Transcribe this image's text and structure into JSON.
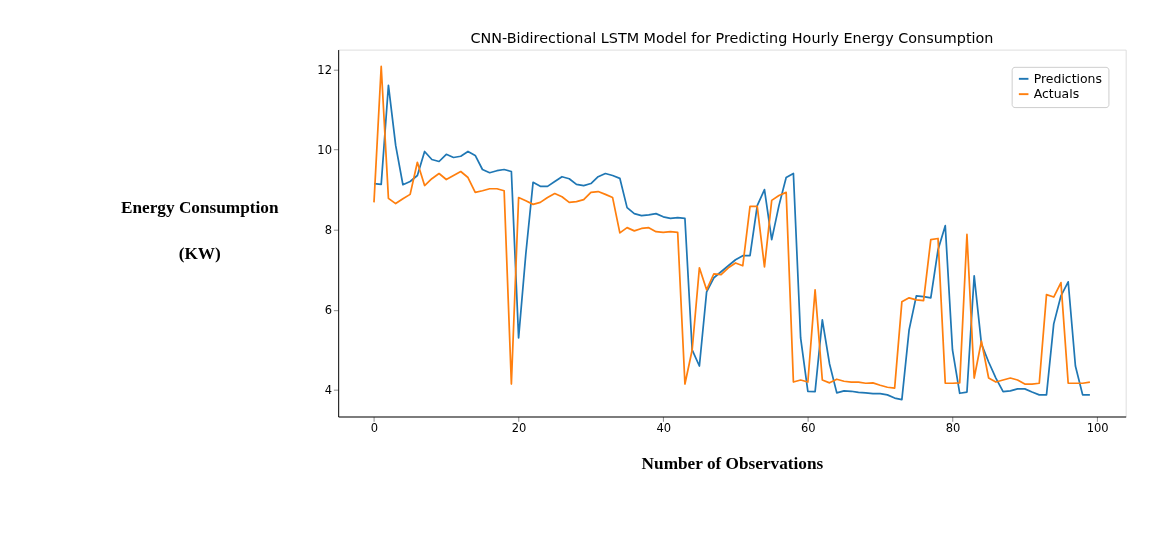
{
  "chart_data": {
    "type": "line",
    "title": "CNN-Bidirectional LSTM Model for Predicting Hourly Energy Consumption",
    "xlabel": "Number of Observations",
    "ylabel": "Energy Consumption\n(KW)",
    "x": [
      0,
      1,
      2,
      3,
      4,
      5,
      6,
      7,
      8,
      9,
      10,
      11,
      12,
      13,
      14,
      15,
      16,
      17,
      18,
      19,
      20,
      21,
      22,
      23,
      24,
      25,
      26,
      27,
      28,
      29,
      30,
      31,
      32,
      33,
      34,
      35,
      36,
      37,
      38,
      39,
      40,
      41,
      42,
      43,
      44,
      45,
      46,
      47,
      48,
      49,
      50,
      51,
      52,
      53,
      54,
      55,
      56,
      57,
      58,
      59,
      60,
      61,
      62,
      63,
      64,
      65,
      66,
      67,
      68,
      69,
      70,
      71,
      72,
      73,
      74,
      75,
      76,
      77,
      78,
      79,
      80,
      81,
      82,
      83,
      84,
      85,
      86,
      87,
      88,
      89,
      90,
      91,
      92,
      93,
      94,
      95,
      96,
      97,
      98,
      99
    ],
    "series": [
      {
        "name": "Predictions",
        "color": "#1f77b4",
        "values": [
          9.15,
          9.13,
          11.6,
          10.1,
          9.12,
          9.2,
          9.35,
          9.95,
          9.75,
          9.7,
          9.88,
          9.8,
          9.83,
          9.95,
          9.85,
          9.5,
          9.42,
          9.47,
          9.5,
          9.45,
          5.3,
          7.4,
          9.18,
          9.08,
          9.08,
          9.2,
          9.32,
          9.27,
          9.13,
          9.1,
          9.15,
          9.32,
          9.4,
          9.35,
          9.28,
          8.55,
          8.4,
          8.35,
          8.37,
          8.4,
          8.32,
          8.28,
          8.3,
          8.28,
          5.0,
          4.6,
          6.45,
          6.8,
          6.95,
          7.1,
          7.25,
          7.35,
          7.35,
          8.6,
          9.0,
          7.75,
          8.6,
          9.3,
          9.4,
          5.3,
          3.97,
          3.96,
          5.75,
          4.65,
          3.93,
          3.98,
          3.97,
          3.94,
          3.93,
          3.91,
          3.91,
          3.88,
          3.8,
          3.76,
          5.5,
          6.35,
          6.33,
          6.3,
          7.5,
          8.1,
          5.0,
          3.92,
          3.95,
          6.85,
          5.15,
          4.7,
          4.3,
          3.96,
          3.98,
          4.03,
          4.03,
          3.95,
          3.88,
          3.88,
          5.65,
          6.35,
          6.7,
          4.6,
          3.88,
          3.88
        ]
      },
      {
        "name": "Actuals",
        "color": "#ff7f0e",
        "values": [
          8.68,
          12.07,
          8.78,
          8.65,
          8.77,
          8.88,
          9.68,
          9.1,
          9.27,
          9.4,
          9.25,
          9.35,
          9.45,
          9.3,
          8.93,
          8.97,
          9.02,
          9.02,
          8.97,
          4.15,
          8.8,
          8.72,
          8.63,
          8.68,
          8.8,
          8.9,
          8.82,
          8.68,
          8.7,
          8.75,
          8.93,
          8.95,
          8.88,
          8.8,
          7.92,
          8.05,
          7.97,
          8.03,
          8.05,
          7.95,
          7.93,
          7.95,
          7.93,
          4.15,
          5.0,
          7.05,
          6.5,
          6.9,
          6.88,
          7.05,
          7.17,
          7.1,
          8.58,
          8.58,
          7.07,
          8.73,
          8.85,
          8.93,
          4.2,
          4.25,
          4.2,
          6.5,
          4.25,
          4.18,
          4.27,
          4.22,
          4.2,
          4.2,
          4.17,
          4.18,
          4.12,
          4.07,
          4.05,
          6.2,
          6.3,
          6.25,
          6.23,
          7.75,
          7.78,
          4.17,
          4.17,
          4.18,
          7.88,
          4.3,
          5.22,
          4.3,
          4.2,
          4.25,
          4.3,
          4.25,
          4.15,
          4.15,
          4.17,
          6.38,
          6.32,
          6.68,
          4.17,
          4.17,
          4.17,
          4.2
        ]
      }
    ],
    "xlim": [
      -4.95,
      103.95
    ],
    "xticks": [
      0,
      20,
      40,
      60,
      80,
      100
    ],
    "ylim": [
      3.34,
      12.49
    ],
    "yticks": [
      4,
      6,
      8,
      10,
      12
    ],
    "grid": false,
    "legend": "top right",
    "marker": "none",
    "line_style": "solid"
  }
}
